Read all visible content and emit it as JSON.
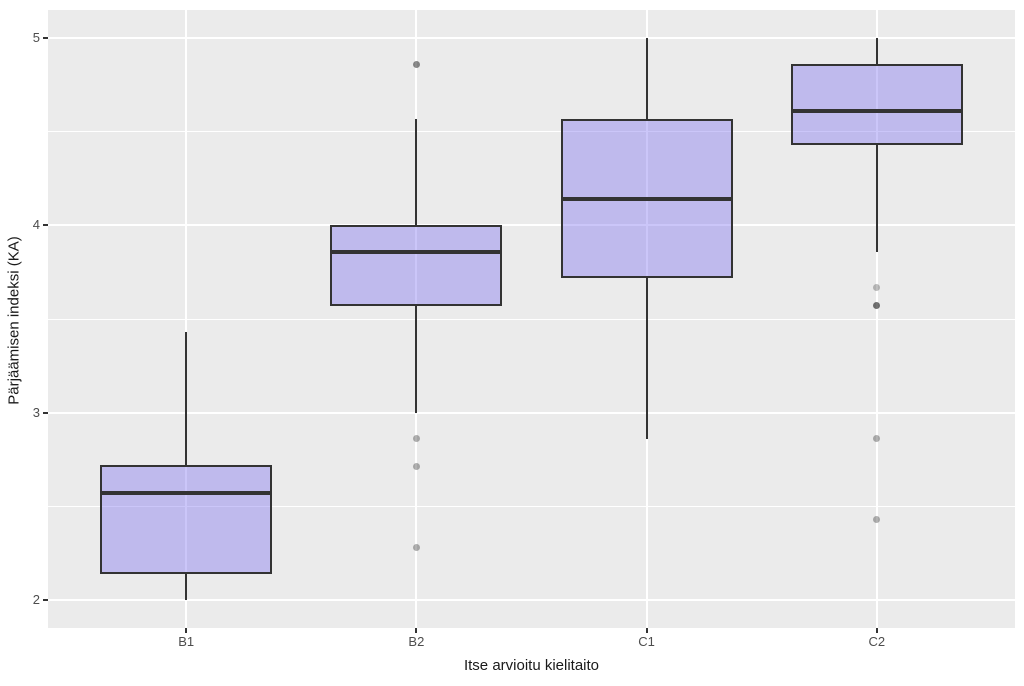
{
  "chart_data": {
    "type": "boxplot",
    "title": "",
    "xlabel": "Itse arvioitu kielitaito",
    "ylabel": "Pärjäämisen indeksi (KA)",
    "categories": [
      "B1",
      "B2",
      "C1",
      "C2"
    ],
    "y_ticks": [
      2,
      3,
      4,
      5
    ],
    "y_minor_ticks": [
      2.5,
      3.5,
      4.5
    ],
    "ylim": [
      1.85,
      5.15
    ],
    "legend": "none",
    "grid": {
      "horizontal_major": true,
      "horizontal_minor": true,
      "vertical_major_at_categories": true
    },
    "series": [
      {
        "category": "B1",
        "whisker_low": 2.0,
        "q1": 2.14,
        "median": 2.57,
        "q3": 2.72,
        "whisker_high": 3.43,
        "outliers": []
      },
      {
        "category": "B2",
        "whisker_low": 3.0,
        "q1": 3.57,
        "median": 3.86,
        "q3": 4.0,
        "whisker_high": 4.57,
        "outliers": [
          {
            "value": 4.86,
            "opacity": 0.45
          },
          {
            "value": 2.86,
            "opacity": 0.3
          },
          {
            "value": 2.71,
            "opacity": 0.3
          },
          {
            "value": 2.28,
            "opacity": 0.3
          }
        ]
      },
      {
        "category": "C1",
        "whisker_low": 2.86,
        "q1": 3.72,
        "median": 4.14,
        "q3": 4.57,
        "whisker_high": 5.0,
        "outliers": []
      },
      {
        "category": "C2",
        "whisker_low": 3.86,
        "q1": 4.43,
        "median": 4.61,
        "q3": 4.86,
        "whisker_high": 5.0,
        "outliers": [
          {
            "value": 3.67,
            "opacity": 0.25
          },
          {
            "value": 3.57,
            "opacity": 0.55
          },
          {
            "value": 2.86,
            "opacity": 0.3
          },
          {
            "value": 2.43,
            "opacity": 0.3
          }
        ]
      }
    ],
    "colors": {
      "panel_bg": "#ebebeb",
      "grid": "#ffffff",
      "box_fill_rgba": "rgba(130,118,240,0.42)",
      "box_border": "#333333",
      "median": "#333333",
      "outlier_base": "#000000",
      "tick_text": "#4d4d4d",
      "axis_title_text": "#1a1a1a"
    }
  }
}
